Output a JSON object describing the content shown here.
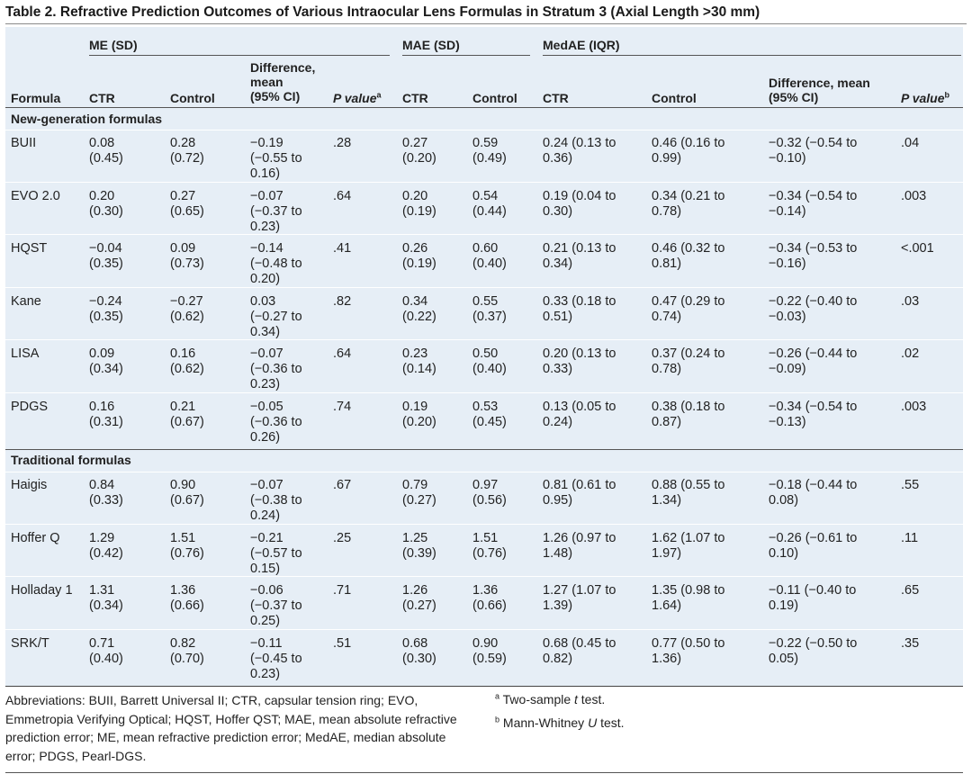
{
  "title": "Table 2. Refractive Prediction Outcomes of Various Intraocular Lens Formulas in Stratum 3 (Axial Length >30 mm)",
  "groups": {
    "me": "ME (SD)",
    "mae": "MAE (SD)",
    "medae": "MedAE (IQR)"
  },
  "columns": {
    "formula": "Formula",
    "me_ctr": "CTR",
    "me_control": "Control",
    "me_diff": "Difference,\nmean\n(95% CI)",
    "me_p": "P value",
    "me_p_sup": "a",
    "mae_ctr": "CTR",
    "mae_control": "Control",
    "med_ctr": "CTR",
    "med_control": "Control",
    "med_diff": "Difference, mean\n(95% CI)",
    "med_p": "P value",
    "med_p_sup": "b"
  },
  "sections": {
    "new": "New-generation formulas",
    "traditional": "Traditional formulas"
  },
  "rows": [
    {
      "formula": "BUII",
      "me_ctr": "0.08\n(0.45)",
      "me_control": "0.28\n(0.72)",
      "me_diff": "−0.19\n(−0.55 to\n0.16)",
      "me_p": ".28",
      "mae_ctr": "0.27\n(0.20)",
      "mae_control": "0.59\n(0.49)",
      "med_ctr": "0.24 (0.13 to\n0.36)",
      "med_control": "0.46 (0.16 to\n0.99)",
      "med_diff": "−0.32 (−0.54 to\n−0.10)",
      "med_p": ".04"
    },
    {
      "formula": "EVO 2.0",
      "me_ctr": "0.20\n(0.30)",
      "me_control": "0.27\n(0.65)",
      "me_diff": "−0.07\n(−0.37 to\n0.23)",
      "me_p": ".64",
      "mae_ctr": "0.20\n(0.19)",
      "mae_control": "0.54\n(0.44)",
      "med_ctr": "0.19 (0.04 to\n0.30)",
      "med_control": "0.34 (0.21 to\n0.78)",
      "med_diff": "−0.34 (−0.54 to\n−0.14)",
      "med_p": ".003"
    },
    {
      "formula": "HQST",
      "me_ctr": "−0.04\n(0.35)",
      "me_control": "0.09\n(0.73)",
      "me_diff": "−0.14\n(−0.48 to\n0.20)",
      "me_p": ".41",
      "mae_ctr": "0.26\n(0.19)",
      "mae_control": "0.60\n(0.40)",
      "med_ctr": "0.21 (0.13 to\n0.34)",
      "med_control": "0.46 (0.32 to\n0.81)",
      "med_diff": "−0.34 (−0.53 to\n−0.16)",
      "med_p": "<.001"
    },
    {
      "formula": "Kane",
      "me_ctr": "−0.24\n(0.35)",
      "me_control": "−0.27\n(0.62)",
      "me_diff": "0.03\n(−0.27 to\n0.34)",
      "me_p": ".82",
      "mae_ctr": "0.34\n(0.22)",
      "mae_control": "0.55\n(0.37)",
      "med_ctr": "0.33 (0.18 to\n0.51)",
      "med_control": "0.47 (0.29 to\n0.74)",
      "med_diff": "−0.22 (−0.40 to\n−0.03)",
      "med_p": ".03"
    },
    {
      "formula": "LISA",
      "me_ctr": "0.09\n(0.34)",
      "me_control": "0.16\n(0.62)",
      "me_diff": "−0.07\n(−0.36 to\n0.23)",
      "me_p": ".64",
      "mae_ctr": "0.23\n(0.14)",
      "mae_control": "0.50\n(0.40)",
      "med_ctr": "0.20 (0.13 to\n0.33)",
      "med_control": "0.37 (0.24 to\n0.78)",
      "med_diff": "−0.26 (−0.44 to\n−0.09)",
      "med_p": ".02"
    },
    {
      "formula": "PDGS",
      "me_ctr": "0.16\n(0.31)",
      "me_control": "0.21\n(0.67)",
      "me_diff": "−0.05\n(−0.36 to\n0.26)",
      "me_p": ".74",
      "mae_ctr": "0.19\n(0.20)",
      "mae_control": "0.53\n(0.45)",
      "med_ctr": "0.13 (0.05 to\n0.24)",
      "med_control": "0.38 (0.18 to\n0.87)",
      "med_diff": "−0.34 (−0.54 to\n−0.13)",
      "med_p": ".003"
    },
    {
      "formula": "Haigis",
      "me_ctr": "0.84\n(0.33)",
      "me_control": "0.90\n(0.67)",
      "me_diff": "−0.07\n(−0.38 to\n0.24)",
      "me_p": ".67",
      "mae_ctr": "0.79\n(0.27)",
      "mae_control": "0.97\n(0.56)",
      "med_ctr": "0.81 (0.61 to\n0.95)",
      "med_control": "0.88 (0.55 to\n1.34)",
      "med_diff": "−0.18 (−0.44 to\n0.08)",
      "med_p": ".55"
    },
    {
      "formula": "Hoffer Q",
      "me_ctr": "1.29\n(0.42)",
      "me_control": "1.51\n(0.76)",
      "me_diff": "−0.21\n(−0.57 to\n0.15)",
      "me_p": ".25",
      "mae_ctr": "1.25\n(0.39)",
      "mae_control": "1.51\n(0.76)",
      "med_ctr": "1.26 (0.97 to\n1.48)",
      "med_control": "1.62 (1.07 to\n1.97)",
      "med_diff": "−0.26 (−0.61 to\n0.10)",
      "med_p": ".11"
    },
    {
      "formula": "Holladay 1",
      "me_ctr": "1.31\n(0.34)",
      "me_control": "1.36\n(0.66)",
      "me_diff": "−0.06\n(−0.37 to\n0.25)",
      "me_p": ".71",
      "mae_ctr": "1.26\n(0.27)",
      "mae_control": "1.36\n(0.66)",
      "med_ctr": "1.27 (1.07 to\n1.39)",
      "med_control": "1.35 (0.98 to\n1.64)",
      "med_diff": "−0.11 (−0.40 to\n0.19)",
      "med_p": ".65"
    },
    {
      "formula": "SRK/T",
      "me_ctr": "0.71\n(0.40)",
      "me_control": "0.82\n(0.70)",
      "me_diff": "−0.11\n(−0.45 to\n0.23)",
      "me_p": ".51",
      "mae_ctr": "0.68\n(0.30)",
      "mae_control": "0.90\n(0.59)",
      "med_ctr": "0.68 (0.45 to\n0.82)",
      "med_control": "0.77 (0.50 to\n1.36)",
      "med_diff": "−0.22 (−0.50 to\n0.05)",
      "med_p": ".35"
    }
  ],
  "footnotes": {
    "abbreviations": "Abbreviations: BUII, Barrett Universal II; CTR, capsular tension ring; EVO, Emmetropia Verifying Optical; HQST, Hoffer QST; MAE, mean absolute refractive prediction error; ME, mean refractive prediction error; MedAE, median absolute error; PDGS, Pearl-DGS.",
    "a_marker": "a",
    "a_text_pre": "Two-sample ",
    "a_text_italic": "t",
    "a_text_post": " test.",
    "b_marker": "b",
    "b_text_pre": "Mann-Whitney ",
    "b_text_italic": "U",
    "b_text_post": " test."
  }
}
